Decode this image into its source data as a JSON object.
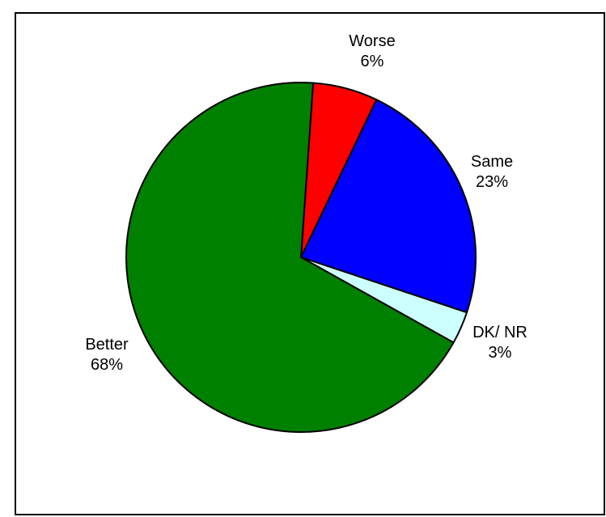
{
  "chart_data": {
    "type": "pie",
    "title": "",
    "slices": [
      {
        "label": "Worse",
        "value": 6,
        "display": "6%",
        "color": "#ff0000"
      },
      {
        "label": "Same",
        "value": 23,
        "display": "23%",
        "color": "#0000ff"
      },
      {
        "label": "DK/ NR",
        "value": 3,
        "display": "3%",
        "color": "#ccffff"
      },
      {
        "label": "Better",
        "value": 68,
        "display": "68%",
        "color": "#008000"
      }
    ],
    "start_angle_deg_clockwise_from_top": 4,
    "outline_color": "#000000"
  }
}
